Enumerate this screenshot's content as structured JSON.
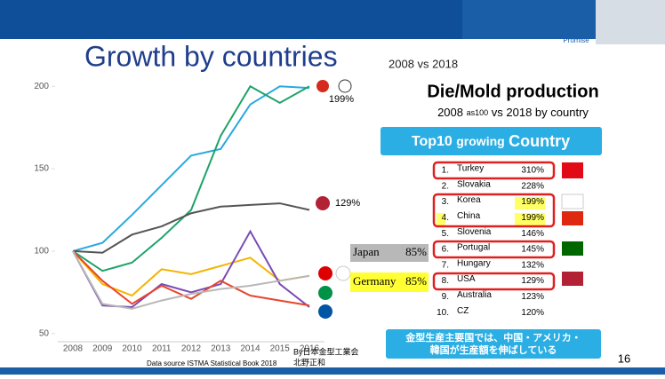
{
  "header": {
    "title": "Growth by countries",
    "subtitle": "2008 vs 2018",
    "logo": "Promise"
  },
  "chart_data": {
    "type": "line",
    "categories": [
      "2008",
      "2009",
      "2010",
      "2011",
      "2012",
      "2013",
      "2014",
      "2015",
      "2016"
    ],
    "ylim": [
      45,
      205
    ],
    "yticks": [
      50,
      100,
      150,
      200
    ],
    "series": [
      {
        "color": "#2aa8e0",
        "values": [
          100,
          105,
          122,
          140,
          158,
          162,
          189,
          200,
          199
        ]
      },
      {
        "color": "#1ea36a",
        "values": [
          100,
          88,
          93,
          108,
          125,
          170,
          200,
          190,
          200
        ]
      },
      {
        "color": "#555555",
        "values": [
          100,
          99,
          110,
          115,
          123,
          127,
          128,
          129,
          125
        ]
      },
      {
        "color": "#f5b400",
        "values": [
          100,
          80,
          73,
          89,
          86,
          91,
          96,
          82,
          85
        ]
      },
      {
        "color": "#7a4bb5",
        "values": [
          100,
          67,
          66,
          80,
          75,
          80,
          112,
          80,
          66
        ]
      },
      {
        "color": "#e8452c",
        "values": [
          100,
          82,
          68,
          79,
          71,
          82,
          73,
          70,
          67
        ]
      },
      {
        "color": "#b8b8b8",
        "values": [
          100,
          68,
          65,
          70,
          74,
          77,
          79,
          82,
          85
        ]
      }
    ],
    "annotations": [
      "199%",
      "129%"
    ]
  },
  "callouts": [
    {
      "label": "Japan",
      "value": "85%"
    },
    {
      "label": "Germany",
      "value": "85%"
    }
  ],
  "source": "Data source ISTMA Statistical Book 2018",
  "credit": [
    "By日本金型工業会",
    "北野正和"
  ],
  "panel": {
    "title": "Die/Mold production",
    "subtitle": [
      "2008",
      "as100",
      "vs 2018 by country"
    ],
    "banner": [
      "Top10",
      "growing",
      "Country"
    ],
    "rows": [
      [
        "1.",
        "Turkey",
        "310%"
      ],
      [
        "2.",
        "Slovakia",
        "228%"
      ],
      [
        "3.",
        "Korea",
        "199%"
      ],
      [
        "4.",
        "China",
        "199%"
      ],
      [
        "5.",
        "Slovenia",
        "146%"
      ],
      [
        "6.",
        "Portugal",
        "145%"
      ],
      [
        "7.",
        "Hungary",
        "132%"
      ],
      [
        "8.",
        "USA",
        "129%"
      ],
      [
        "9.",
        "Australia",
        "123%"
      ],
      [
        "10.",
        "CZ",
        "120%"
      ]
    ],
    "note": [
      "金型生産主要国では、中国・アメリカ・",
      "韓国が生産額を伸ばしている"
    ]
  },
  "page": "16"
}
